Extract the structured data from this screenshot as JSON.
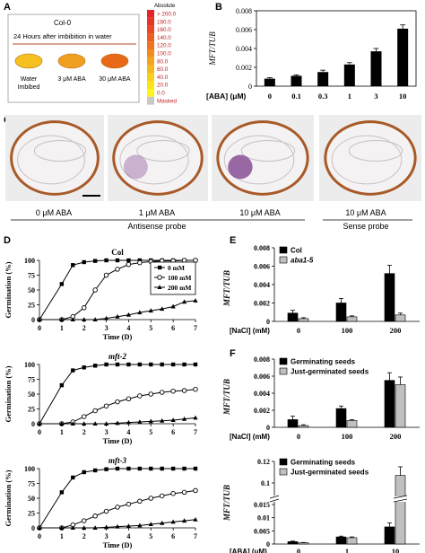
{
  "panelA": {
    "letter": "A",
    "genotype": "Col-0",
    "description": "24 Hours after imbibition in water",
    "seeds": [
      {
        "label1": "Water",
        "label2": "Imbibed",
        "color": "#f5c020"
      },
      {
        "label1": "3 μM ABA",
        "label2": "",
        "color": "#f0a020"
      },
      {
        "label1": "30 μM ABA",
        "label2": "",
        "color": "#e86a18"
      }
    ],
    "scale_title": "Absolute",
    "scale_ticks": [
      "> 200.0",
      "180.0",
      "160.0",
      "140.0",
      "120.0",
      "100.0",
      "80.0",
      "60.0",
      "40.0",
      "20.0",
      "0.0",
      "Masked"
    ],
    "scale_colors": [
      "#e8222a",
      "#ea3326",
      "#ec4724",
      "#ee5d22",
      "#f07420",
      "#f28a1e",
      "#f4a31c",
      "#f6b81a",
      "#f8cf19",
      "#fbe418",
      "#fdf516",
      "#c8c8c8"
    ]
  },
  "panelC": {
    "letter": "C",
    "labels": [
      "0 μM ABA",
      "1 μM ABA",
      "10 μM ABA",
      "10 μM ABA"
    ],
    "group1": "Antisense probe",
    "group2": "Sense probe"
  },
  "chart_data": [
    {
      "id": "B",
      "type": "bar",
      "ylabel": "MFT/TUB",
      "xlabel": "[ABA] (μM)",
      "categories": [
        "0",
        "0.1",
        "0.3",
        "1",
        "3",
        "10"
      ],
      "values": [
        0.0008,
        0.0011,
        0.0015,
        0.0023,
        0.0037,
        0.0061
      ],
      "errors": [
        0.0001,
        0.0001,
        0.0002,
        0.0002,
        0.0003,
        0.0004
      ],
      "ylim": [
        0,
        0.008
      ],
      "yticks": [
        "0",
        "0.002",
        "0.004",
        "0.006",
        "0.008"
      ]
    },
    {
      "id": "D",
      "type": "line",
      "ylabel": "Germination (%)",
      "xlabel": "Time (D)",
      "xlim": [
        0,
        7
      ],
      "ylim": [
        0,
        100
      ],
      "xticks": [
        "0",
        "1",
        "2",
        "3",
        "4",
        "5",
        "6",
        "7"
      ],
      "yticks": [
        "0",
        "25",
        "50",
        "75",
        "100"
      ],
      "legend": [
        "0 mM",
        "100 mM",
        "200 mM"
      ],
      "plots": [
        {
          "title": "Col",
          "series": [
            {
              "name": "0 mM",
              "marker": "square",
              "x": [
                0,
                1,
                1.5,
                2,
                2.5,
                3,
                3.5,
                4,
                4.5,
                5,
                5.5,
                6,
                6.5,
                7
              ],
              "y": [
                0,
                60,
                92,
                97,
                99,
                100,
                100,
                100,
                100,
                100,
                100,
                100,
                100,
                100
              ]
            },
            {
              "name": "100 mM",
              "marker": "circle",
              "x": [
                0,
                1,
                1.5,
                2,
                2.5,
                3,
                3.5,
                4,
                4.5,
                5,
                5.5,
                6,
                6.5,
                7
              ],
              "y": [
                0,
                0,
                5,
                20,
                50,
                75,
                85,
                93,
                96,
                98,
                99,
                99,
                100,
                100
              ]
            },
            {
              "name": "200 mM",
              "marker": "triangle",
              "x": [
                0,
                1,
                1.5,
                2,
                2.5,
                3,
                3.5,
                4,
                4.5,
                5,
                5.5,
                6,
                6.5,
                7
              ],
              "y": [
                0,
                0,
                0,
                0,
                0,
                2,
                5,
                8,
                12,
                15,
                18,
                22,
                30,
                32
              ]
            }
          ]
        },
        {
          "title": "mft-2",
          "series": [
            {
              "name": "0 mM",
              "marker": "square",
              "x": [
                0,
                1,
                1.5,
                2,
                2.5,
                3,
                3.5,
                4,
                4.5,
                5,
                5.5,
                6,
                6.5,
                7
              ],
              "y": [
                0,
                65,
                90,
                95,
                98,
                100,
                100,
                100,
                100,
                100,
                100,
                100,
                100,
                100
              ]
            },
            {
              "name": "100 mM",
              "marker": "circle",
              "x": [
                0,
                1,
                1.5,
                2,
                2.5,
                3,
                3.5,
                4,
                4.5,
                5,
                5.5,
                6,
                6.5,
                7
              ],
              "y": [
                0,
                0,
                3,
                12,
                22,
                30,
                37,
                42,
                47,
                50,
                53,
                55,
                56,
                58
              ]
            },
            {
              "name": "200 mM",
              "marker": "triangle",
              "x": [
                0,
                1,
                1.5,
                2,
                2.5,
                3,
                3.5,
                4,
                4.5,
                5,
                5.5,
                6,
                6.5,
                7
              ],
              "y": [
                0,
                0,
                0,
                0,
                0,
                0,
                1,
                2,
                3,
                4,
                5,
                6,
                8,
                10
              ]
            }
          ]
        },
        {
          "title": "mft-3",
          "series": [
            {
              "name": "0 mM",
              "marker": "square",
              "x": [
                0,
                1,
                1.5,
                2,
                2.5,
                3,
                3.5,
                4,
                4.5,
                5,
                5.5,
                6,
                6.5,
                7
              ],
              "y": [
                0,
                60,
                85,
                94,
                97,
                99,
                100,
                100,
                100,
                100,
                100,
                100,
                100,
                100
              ]
            },
            {
              "name": "100 mM",
              "marker": "circle",
              "x": [
                0,
                1,
                1.5,
                2,
                2.5,
                3,
                3.5,
                4,
                4.5,
                5,
                5.5,
                6,
                6.5,
                7
              ],
              "y": [
                0,
                0,
                5,
                12,
                20,
                28,
                35,
                40,
                45,
                50,
                54,
                58,
                60,
                63
              ]
            },
            {
              "name": "200 mM",
              "marker": "triangle",
              "x": [
                0,
                1,
                1.5,
                2,
                2.5,
                3,
                3.5,
                4,
                4.5,
                5,
                5.5,
                6,
                6.5,
                7
              ],
              "y": [
                0,
                0,
                0,
                0,
                0,
                1,
                2,
                3,
                4,
                6,
                8,
                10,
                12,
                14
              ]
            }
          ]
        }
      ]
    },
    {
      "id": "E",
      "type": "bar",
      "ylabel": "MFT/TUB",
      "xlabel": "[NaCl] (mM)",
      "categories": [
        "0",
        "100",
        "200"
      ],
      "ylim": [
        0,
        0.008
      ],
      "yticks": [
        "0",
        "0.002",
        "0.004",
        "0.006",
        "0.008"
      ],
      "series": [
        {
          "name": "Col",
          "color": "#000000",
          "values": [
            0.0009,
            0.002,
            0.0052
          ],
          "errors": [
            0.0003,
            0.0005,
            0.0009
          ]
        },
        {
          "name": "aba1-5",
          "color": "#c0c0c0",
          "values": [
            0.0003,
            0.0005,
            0.0007
          ],
          "errors": [
            0.0001,
            0.0001,
            0.0002
          ]
        }
      ]
    },
    {
      "id": "F1",
      "type": "bar",
      "ylabel": "MFT/TUB",
      "xlabel": "[NaCl] (mM)",
      "categories": [
        "0",
        "100",
        "200"
      ],
      "ylim": [
        0,
        0.008
      ],
      "yticks": [
        "0",
        "0.002",
        "0.004",
        "0.006",
        "0.008"
      ],
      "series": [
        {
          "name": "Germinating seeds",
          "color": "#000000",
          "values": [
            0.0009,
            0.0022,
            0.0055
          ],
          "errors": [
            0.0004,
            0.0003,
            0.0009
          ]
        },
        {
          "name": "Just-germinated seeds",
          "color": "#c0c0c0",
          "values": [
            0.0002,
            0.0008,
            0.005
          ],
          "errors": [
            0.0001,
            0.0001,
            0.0009
          ]
        }
      ]
    },
    {
      "id": "F2",
      "type": "bar",
      "ylabel": "MFT/TUB",
      "xlabel": "[ABA] (μM)",
      "categories": [
        "0",
        "1",
        "10"
      ],
      "yticks_low": [
        "0",
        "0.005",
        "0.01",
        "0.015"
      ],
      "yticks_high": [
        "0.1",
        "0.12"
      ],
      "series": [
        {
          "name": "Germinating seeds",
          "color": "#000000",
          "values": [
            0.0009,
            0.0027,
            0.0065
          ],
          "errors": [
            0.0002,
            0.0003,
            0.0015
          ]
        },
        {
          "name": "Just-germinated seeds",
          "color": "#c0c0c0",
          "values": [
            0.0005,
            0.0024,
            0.107
          ],
          "errors": [
            0.0001,
            0.0003,
            0.008
          ]
        }
      ]
    }
  ]
}
